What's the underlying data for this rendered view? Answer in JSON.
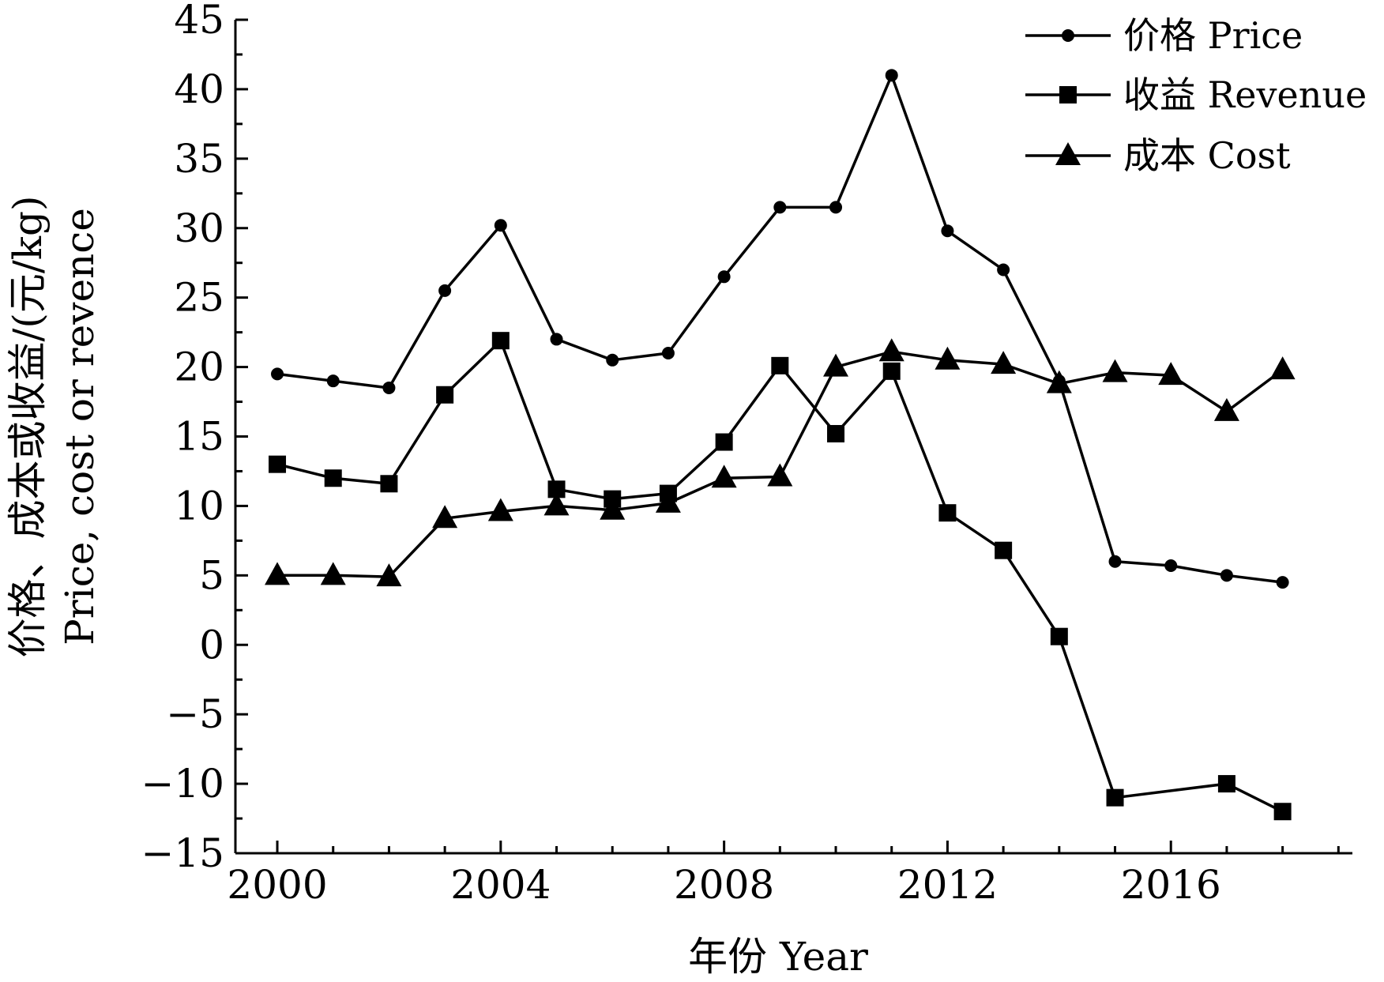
{
  "chart_data": {
    "type": "line",
    "xlabel": "年份 Year",
    "ylabel_cn": "价格、成本或收益/(元/kg)",
    "ylabel_en": "Price, cost or revence",
    "xlim": [
      1999.25,
      2019.25
    ],
    "ylim": [
      -15,
      45
    ],
    "x_ticks": [
      2000,
      2004,
      2008,
      2012,
      2016
    ],
    "y_ticks": [
      -15,
      -10,
      -5,
      0,
      5,
      10,
      15,
      20,
      25,
      30,
      35,
      40,
      45
    ],
    "x_tick_labels": [
      "2000",
      "2004",
      "2008",
      "2012",
      "2016"
    ],
    "y_tick_labels": [
      "−15",
      "−10",
      "−5",
      "0",
      "5",
      "10",
      "15",
      "20",
      "25",
      "30",
      "35",
      "40",
      "45"
    ],
    "legend_position": "top-right",
    "series": [
      {
        "name": "价格 Price",
        "marker": "circle",
        "x": [
          2000,
          2001,
          2002,
          2003,
          2004,
          2005,
          2006,
          2007,
          2008,
          2009,
          2010,
          2011,
          2012,
          2013,
          2014,
          2015,
          2016,
          2017,
          2018
        ],
        "values": [
          19.5,
          19.0,
          18.5,
          25.5,
          30.2,
          22.0,
          20.5,
          21.0,
          26.5,
          31.5,
          31.5,
          41.0,
          29.8,
          27.0,
          19.0,
          6.0,
          5.7,
          5.0,
          4.5
        ]
      },
      {
        "name": "收益 Revenue",
        "marker": "square",
        "x": [
          2000,
          2001,
          2002,
          2003,
          2004,
          2005,
          2006,
          2007,
          2008,
          2009,
          2010,
          2011,
          2012,
          2013,
          2014,
          2015,
          2017,
          2018
        ],
        "values": [
          13.0,
          12.0,
          11.6,
          18.0,
          21.9,
          11.2,
          10.5,
          10.9,
          14.6,
          20.1,
          15.2,
          19.7,
          9.5,
          6.8,
          0.6,
          -11.0,
          -10.0,
          -12.0
        ]
      },
      {
        "name": "成本 Cost",
        "marker": "triangle",
        "x": [
          2000,
          2001,
          2002,
          2003,
          2004,
          2005,
          2006,
          2007,
          2008,
          2009,
          2010,
          2011,
          2012,
          2013,
          2014,
          2015,
          2016,
          2017,
          2018
        ],
        "values": [
          5.0,
          5.0,
          4.9,
          9.1,
          9.6,
          10.0,
          9.7,
          10.2,
          12.0,
          12.1,
          20.0,
          21.1,
          20.5,
          20.2,
          18.8,
          19.6,
          19.4,
          16.8,
          19.8
        ]
      }
    ]
  }
}
